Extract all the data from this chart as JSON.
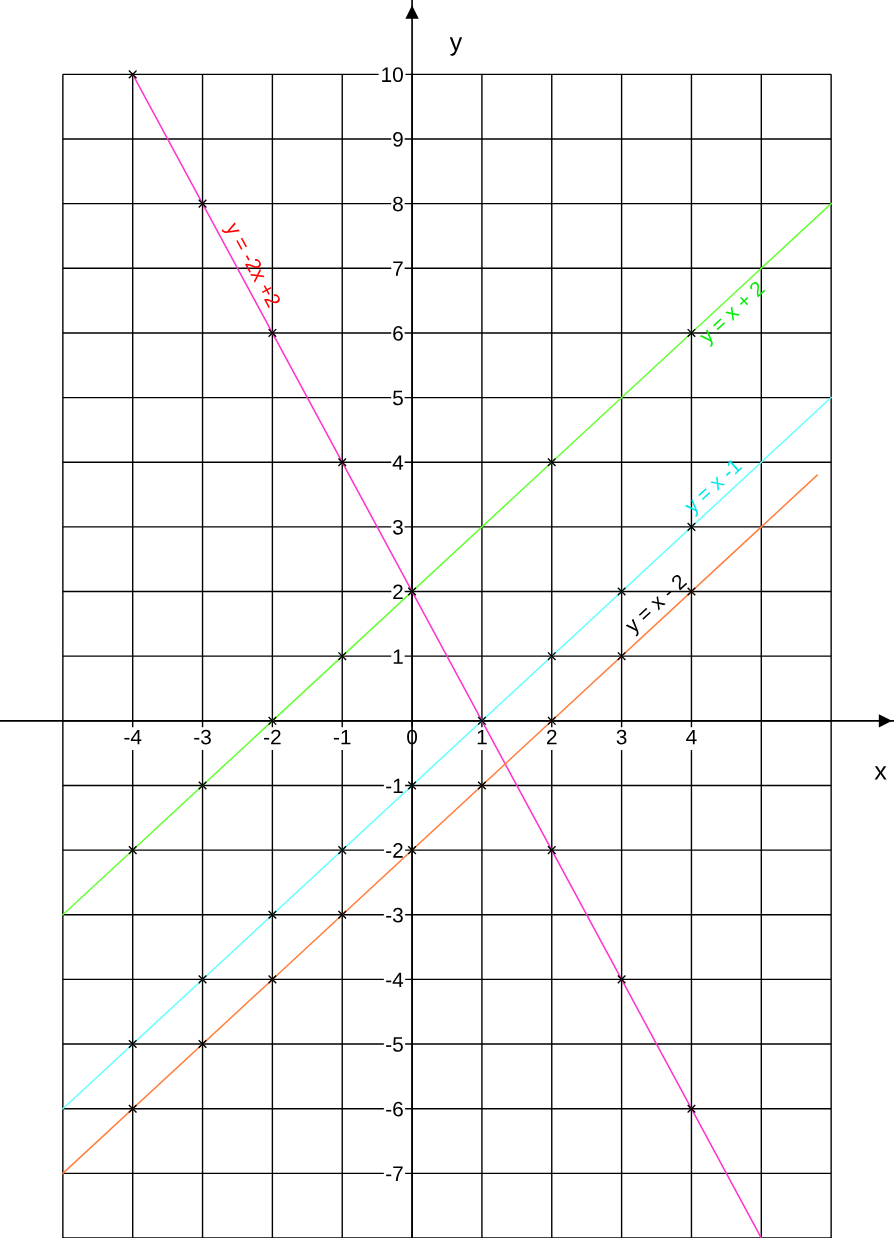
{
  "chart_data": {
    "type": "line",
    "xlabel": "x",
    "ylabel": "y",
    "xlim": [
      -5.9,
      6.9
    ],
    "ylim": [
      -8,
      11.15
    ],
    "xticks": [
      {
        "value": -5,
        "label": null
      },
      -4,
      -3,
      -2,
      -1,
      0,
      1,
      2,
      3,
      4,
      {
        "value": 5,
        "label": null
      },
      {
        "value": 6,
        "label": null
      }
    ],
    "yticks": [
      {
        "value": -8,
        "label": null
      },
      -7,
      -6,
      -5,
      -4,
      -3,
      -2,
      -1,
      {
        "value": 0,
        "label": null
      },
      1,
      2,
      3,
      4,
      5,
      6,
      7,
      8,
      9,
      10
    ],
    "grid": true,
    "legend": false,
    "marker": "none",
    "line_style": "solid",
    "series": [
      {
        "name": "y = -2x +2",
        "color": "#ff33cc",
        "x": [
          -4,
          5
        ],
        "values": [
          10,
          -8
        ]
      },
      {
        "name": "y = x + 2",
        "color": "#66ff33",
        "x": [
          -5,
          6
        ],
        "values": [
          -3,
          8
        ]
      },
      {
        "name": "y = x -1",
        "color": "#66ffff",
        "x": [
          -5,
          6
        ],
        "values": [
          -6,
          5
        ]
      },
      {
        "name": "y = x - 2",
        "color": "#ff8040",
        "x": [
          -5,
          5.8
        ],
        "values": [
          -7,
          3.8
        ]
      },
      {
        "type": "scatter",
        "marker": "cross",
        "color": "#000000",
        "x": [
          -4,
          -3,
          -2,
          -1,
          0,
          1,
          2,
          3,
          4,
          -4,
          -3,
          -2,
          -1,
          2,
          4,
          -4,
          -3,
          -2,
          -1,
          0,
          2,
          3,
          4,
          -4,
          -3,
          -2,
          -1,
          0,
          1,
          2,
          3,
          4
        ],
        "values": [
          10,
          8,
          6,
          4,
          2,
          0,
          -2,
          -4,
          -6,
          -2,
          -1,
          0,
          1,
          4,
          6,
          -5,
          -4,
          -3,
          -2,
          -1,
          1,
          2,
          3,
          -6,
          -5,
          -4,
          -3,
          -2,
          -1,
          0,
          1,
          2
        ]
      }
    ]
  }
}
